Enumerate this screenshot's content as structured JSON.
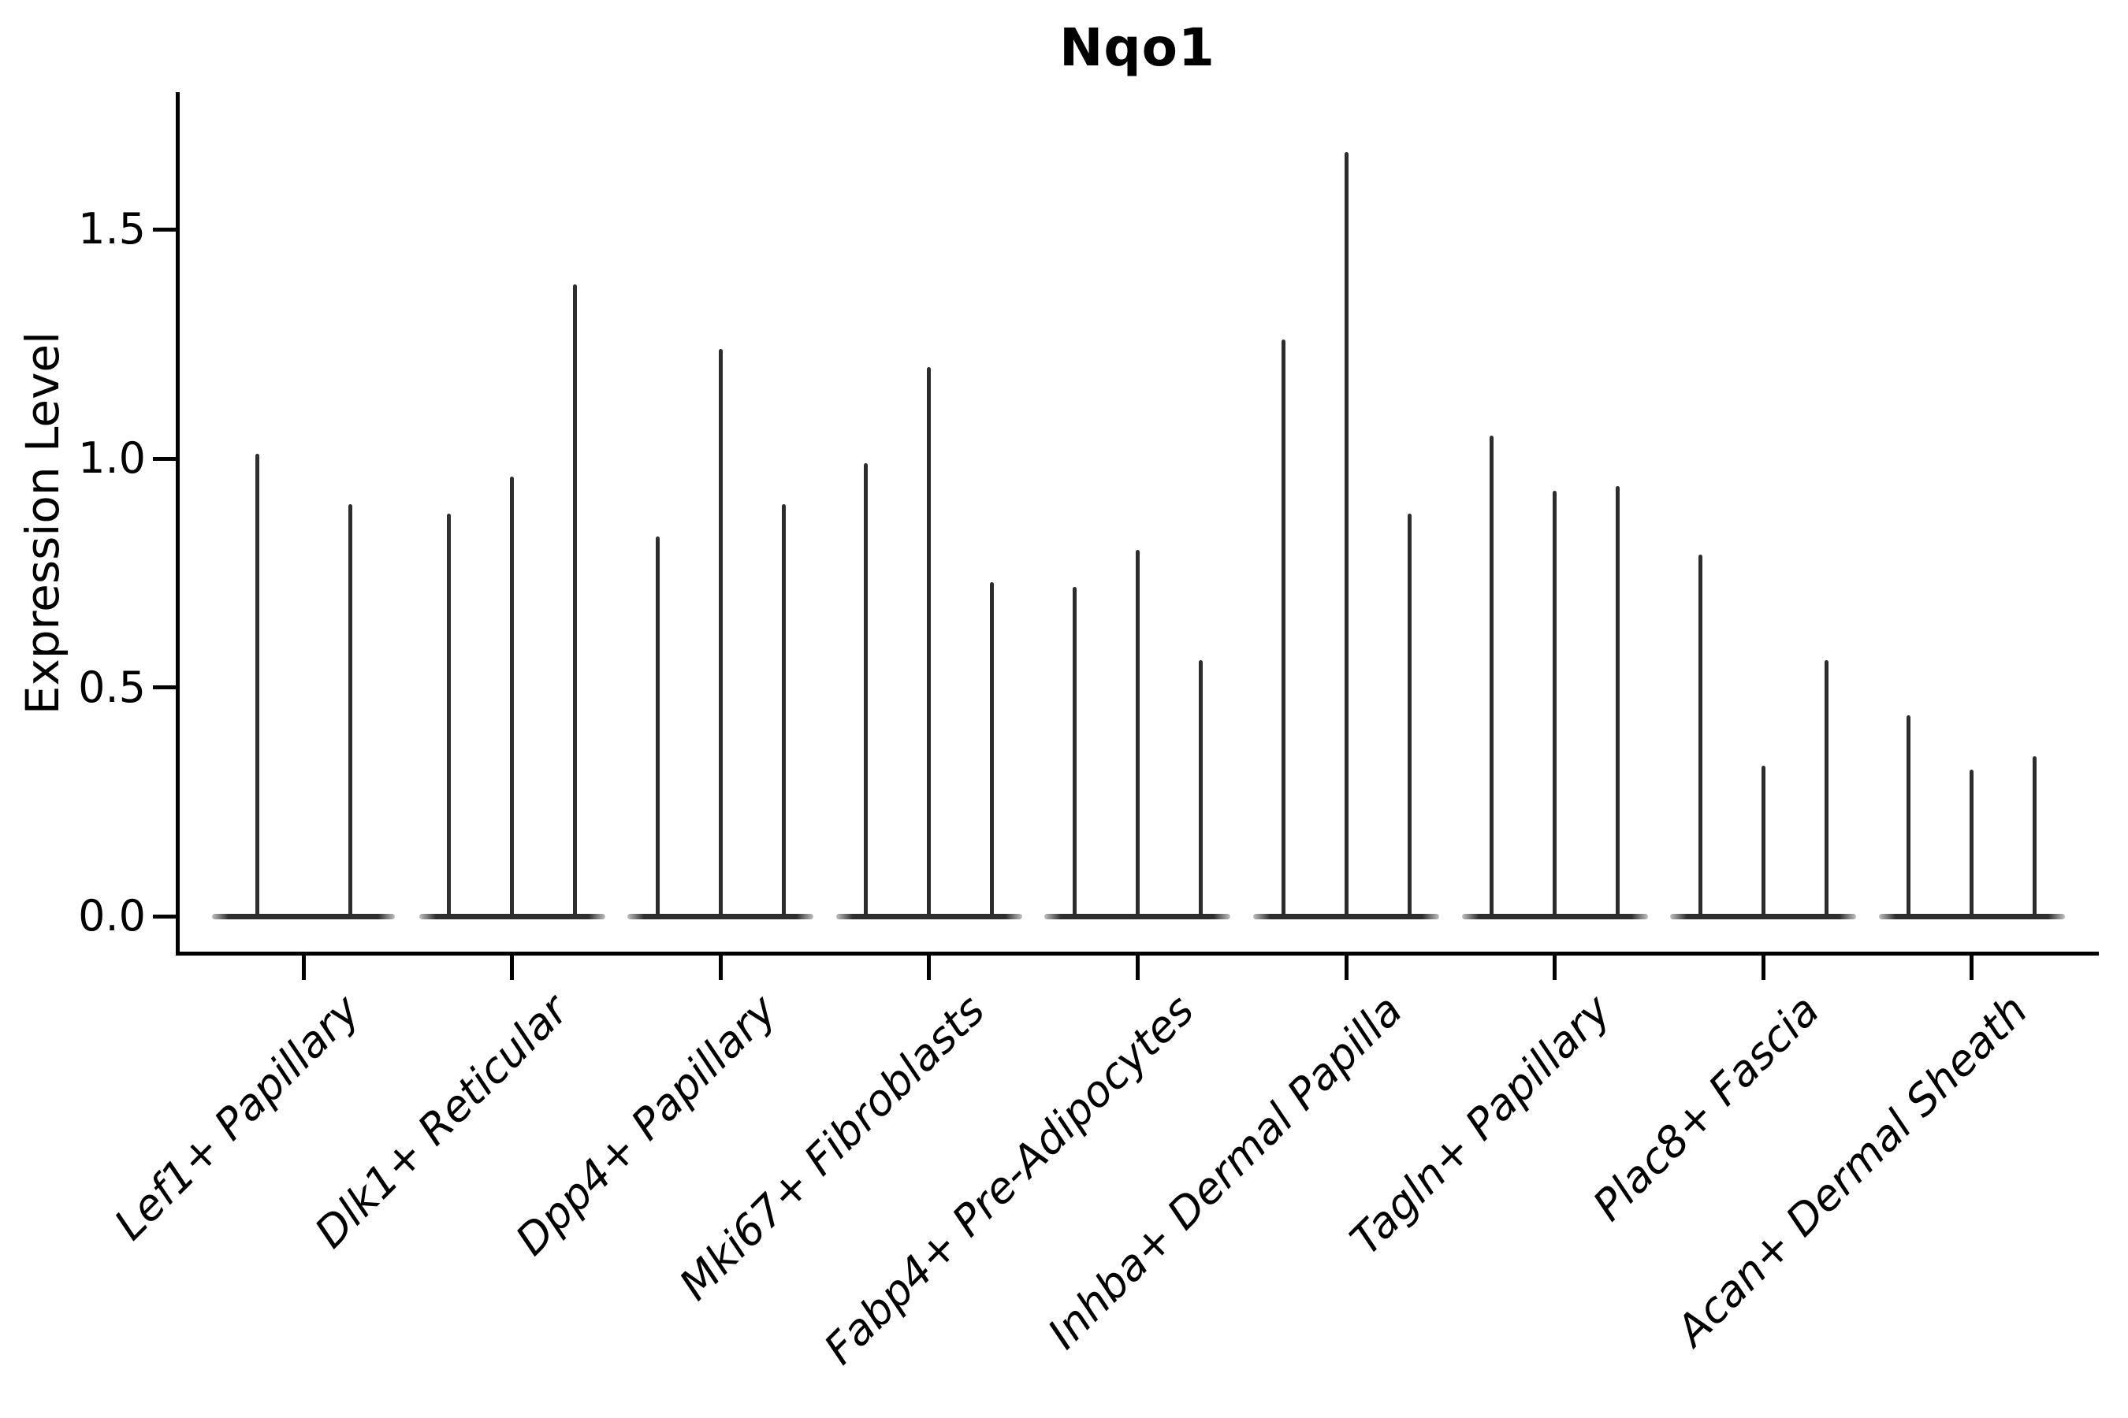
{
  "figure": {
    "title": "Nqo1",
    "ylabel": "Expression Level"
  },
  "chart_data": {
    "type": "violin",
    "title": "Nqo1",
    "xlabel": "",
    "ylabel": "Expression Level",
    "ylim": [
      -0.08,
      1.8
    ],
    "yticks": [
      "0.0",
      "0.5",
      "1.0",
      "1.5"
    ],
    "ytick_values": [
      0,
      0.5,
      1.0,
      1.5
    ],
    "grid": false,
    "legend": "none",
    "axis_color": "#000000",
    "violin_color": "#2e2e2e",
    "baseline_value": 0,
    "categories": [
      "Lef1+ Papillary",
      "Dlk1+ Reticular",
      "Dpp4+ Papillary",
      "Mki67+ Fibroblasts",
      "Fabp4+ Pre-Adipocytes",
      "Inhba+ Dermal Papilla",
      "Tagln+ Papillary",
      "Plac8+ Fascia",
      "Acan+ Dermal Sheath"
    ],
    "groups": [
      {
        "label": "Lef1+ Papillary",
        "spike_maxima": [
          1.01,
          0.9
        ]
      },
      {
        "label": "Dlk1+ Reticular",
        "spike_maxima": [
          0.88,
          0.96,
          1.38
        ]
      },
      {
        "label": "Dpp4+ Papillary",
        "spike_maxima": [
          0.83,
          1.24,
          0.9
        ]
      },
      {
        "label": "Mki67+ Fibroblasts",
        "spike_maxima": [
          0.99,
          1.2,
          0.73
        ]
      },
      {
        "label": "Fabp4+ Pre-Adipocytes",
        "spike_maxima": [
          0.72,
          0.8,
          0.56
        ]
      },
      {
        "label": "Inhba+ Dermal Papilla",
        "spike_maxima": [
          1.26,
          1.67,
          0.88
        ]
      },
      {
        "label": "Tagln+ Papillary",
        "spike_maxima": [
          1.05,
          0.93,
          0.94
        ]
      },
      {
        "label": "Plac8+ Fascia",
        "spike_maxima": [
          0.79,
          0.33,
          0.56
        ]
      },
      {
        "label": "Acan+ Dermal Sheath",
        "spike_maxima": [
          0.44,
          0.32,
          0.35
        ]
      }
    ]
  }
}
